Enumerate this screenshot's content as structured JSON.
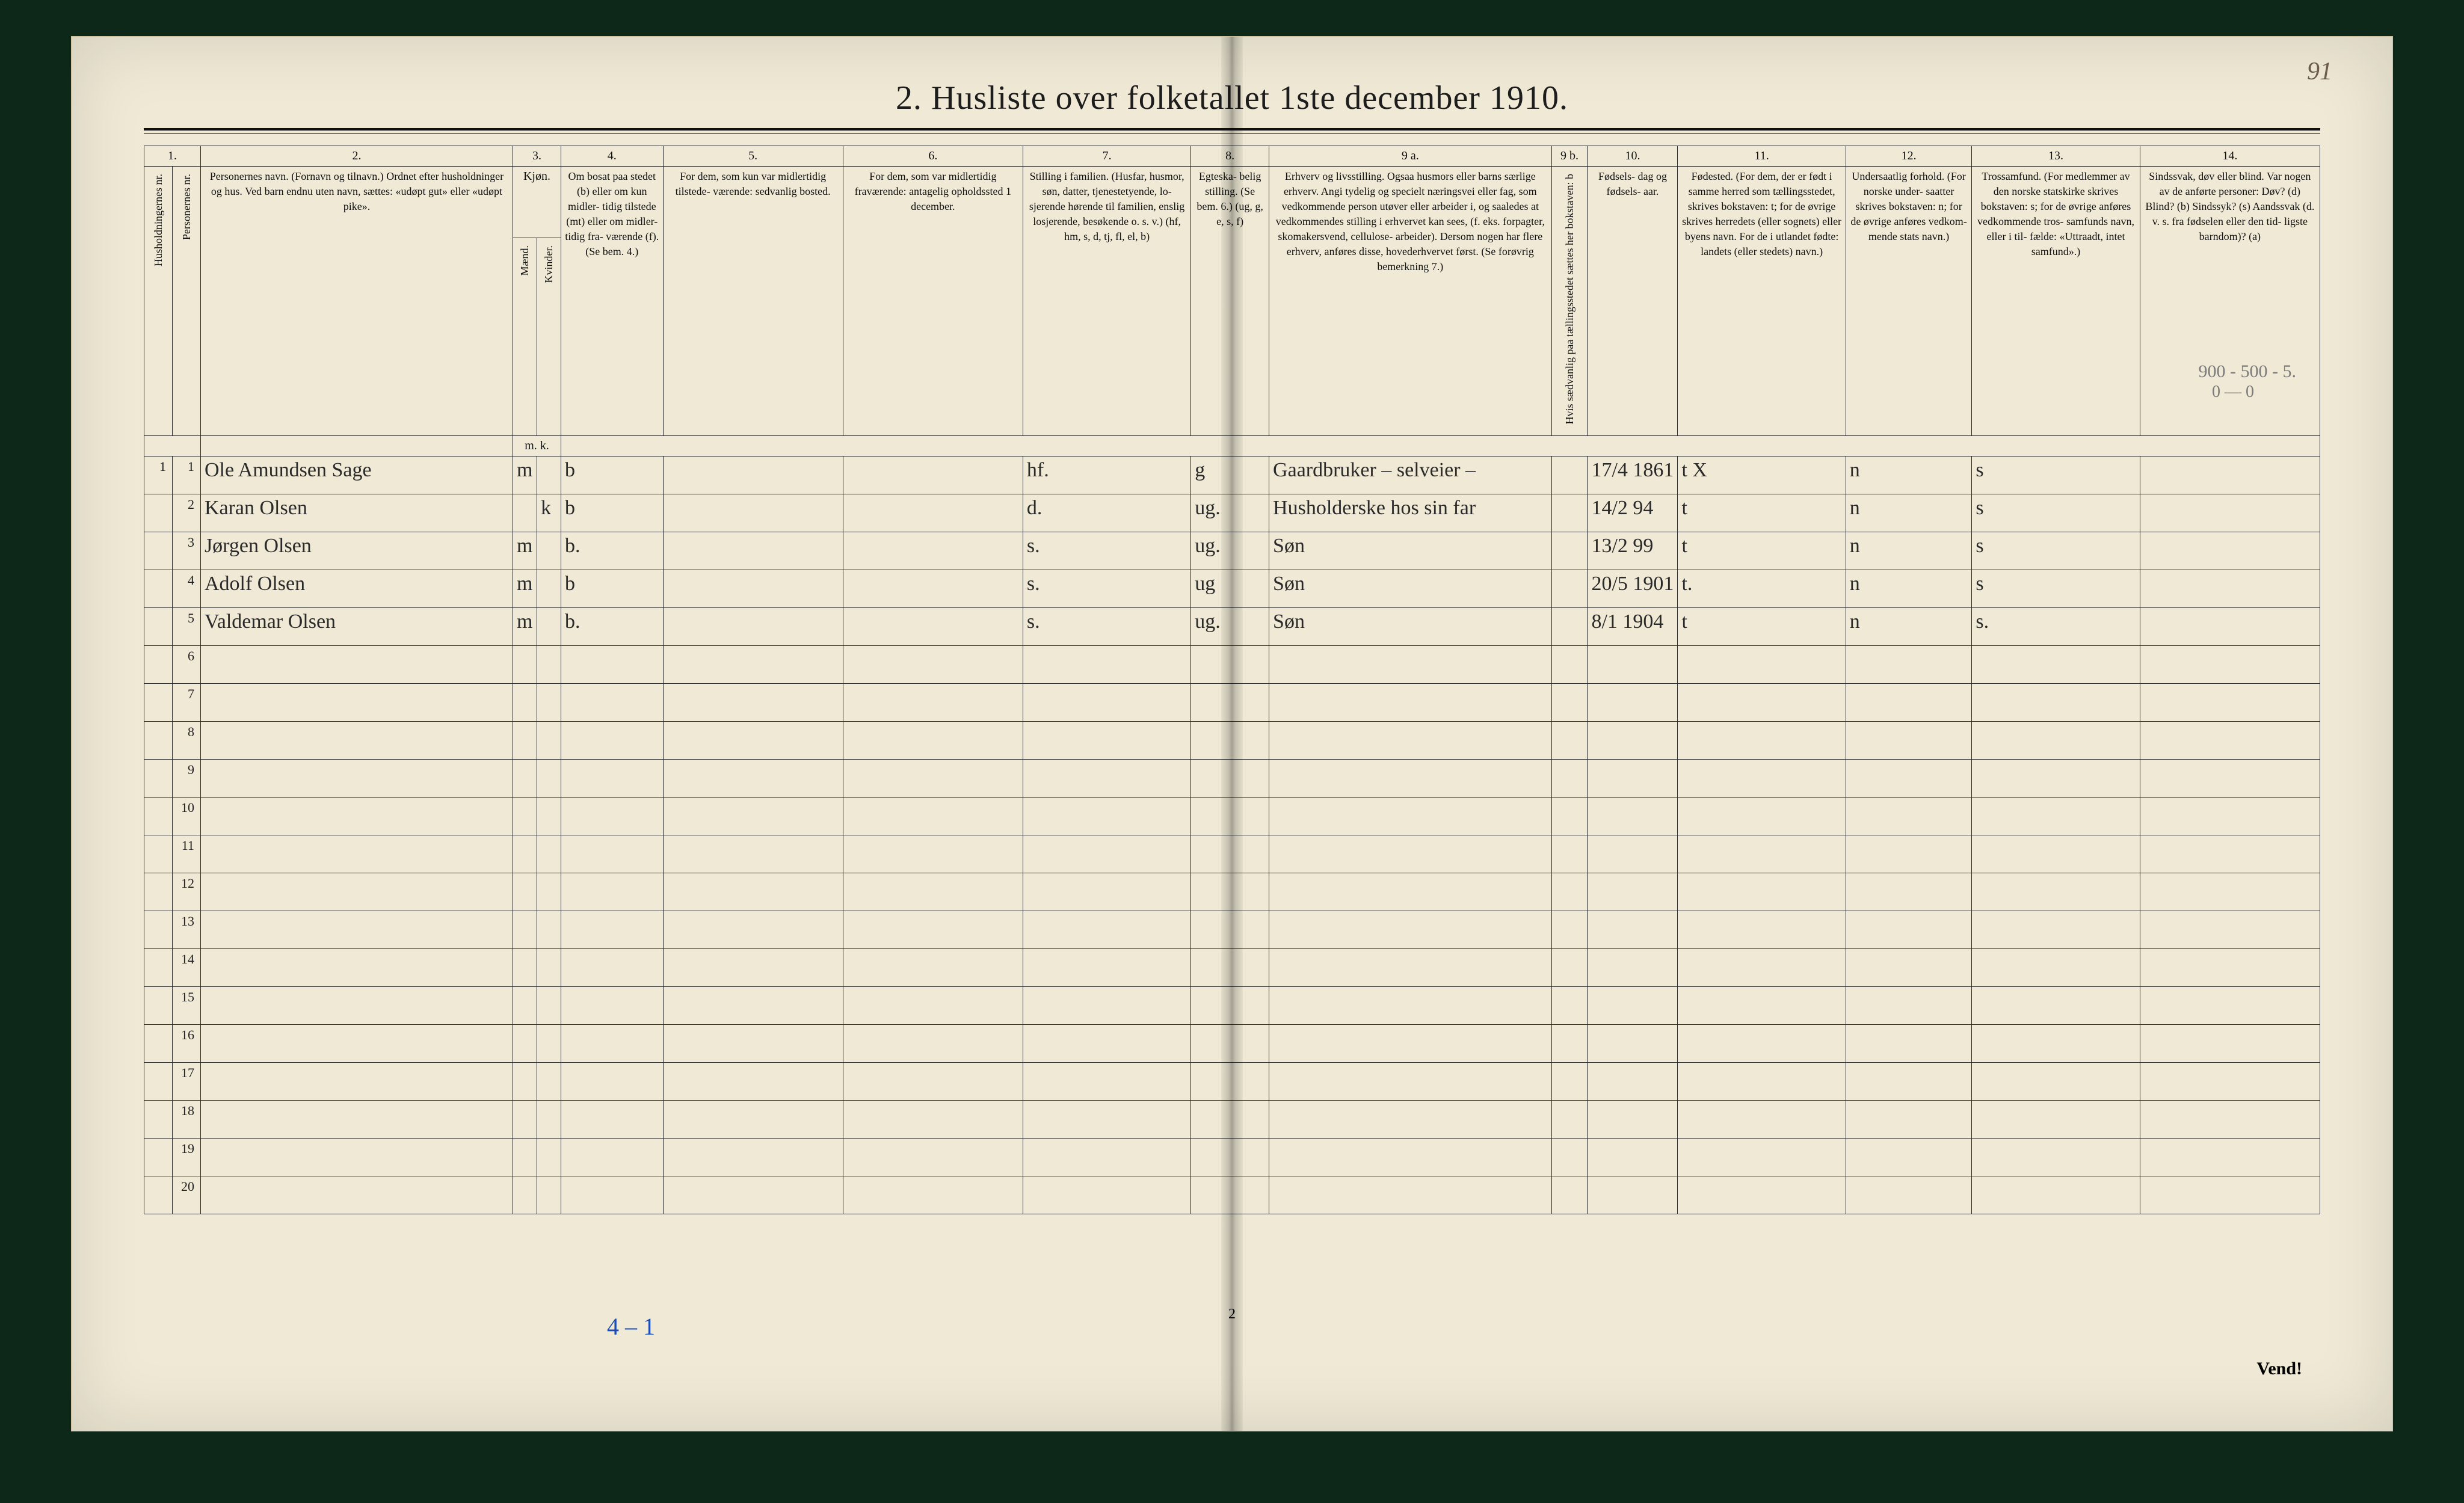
{
  "page_number_handwritten": "91",
  "title": "2.  Husliste over folketallet 1ste december 1910.",
  "pencil_note_top": "900 - 500 - 5.",
  "pencil_note_top2": "0   —   0",
  "column_numbers": [
    "1.",
    "2.",
    "3.",
    "4.",
    "5.",
    "6.",
    "7.",
    "8.",
    "9 a.",
    "9 b.",
    "10.",
    "11.",
    "12.",
    "13.",
    "14."
  ],
  "headers": {
    "c1a": "Husholdningernes nr.",
    "c1b": "Personernes nr.",
    "c2": "Personernes navn.\n(Fornavn og tilnavn.)\nOrdnet efter husholdninger og hus.\nVed barn endnu uten navn, sættes: «udøpt gut» eller «udøpt pike».",
    "c3": "Kjøn.",
    "c3a": "Mænd.",
    "c3b": "Kvinder.",
    "c4": "Om bosat paa stedet (b) eller om kun midler- tidig tilstede (mt) eller om midler- tidig fra- værende (f). (Se bem. 4.)",
    "c5": "For dem, som kun var midlertidig tilstede- værende:\nsedvanlig bosted.",
    "c6": "For dem, som var midlertidig fraværende:\nantagelig opholdssted 1 december.",
    "c7": "Stilling i familien.\n(Husfar, husmor, søn, datter, tjenestetyende, lo- sjerende hørende til familien, enslig losjerende, besøkende o. s. v.)\n(hf, hm, s, d, tj, fl, el, b)",
    "c8": "Egteska- belig stilling.\n(Se bem. 6.)\n(ug, g, e, s, f)",
    "c9a": "Erhverv og livsstilling.\nOgsaa husmors eller barns særlige erhverv. Angi tydelig og specielt næringsvei eller fag, som vedkommende person utøver eller arbeider i, og saaledes at vedkommendes stilling i erhvervet kan sees, (f. eks. forpagter, skomakersvend, cellulose- arbeider). Dersom nogen har flere erhverv, anføres disse, hovederhvervet først.\n(Se forøvrig bemerkning 7.)",
    "c9b": "Hvis sædvanlig paa tællingsstedet sættes her bokstaven: b",
    "c10": "Fødsels- dag og fødsels- aar.",
    "c11": "Fødested.\n(For dem, der er født i samme herred som tællingsstedet, skrives bokstaven: t; for de øvrige skrives herredets (eller sognets) eller byens navn. For de i utlandet fødte: landets (eller stedets) navn.)",
    "c12": "Undersaatlig forhold.\n(For norske under- saatter skrives bokstaven: n; for de øvrige anføres vedkom- mende stats navn.)",
    "c13": "Trossamfund.\n(For medlemmer av den norske statskirke skrives bokstaven: s; for de øvrige anføres vedkommende tros- samfunds navn, eller i til- fælde: «Uttraadt, intet samfund».)",
    "c14": "Sindssvak, døv eller blind.\nVar nogen av de anførte personer:\nDøv?      (d)\nBlind?    (b)\nSindssyk? (s)\nAandssvak (d. v. s. fra fødselen eller den tid- ligste barndom)? (a)"
  },
  "rows": [
    {
      "hh": "1",
      "pn": "1",
      "name": "Ole Amundsen Sage",
      "sex_m": "m",
      "sex_k": "",
      "residence": "b",
      "col5": "",
      "col6": "",
      "family_pos": "hf.",
      "marital": "g",
      "occupation": "Gaardbruker – selveier –",
      "col9b": "",
      "birth": "17/4 1861",
      "birthplace": "t  X",
      "nationality": "n",
      "faith": "s",
      "col14": ""
    },
    {
      "hh": "",
      "pn": "2",
      "name": "Karan Olsen",
      "sex_m": "",
      "sex_k": "k",
      "residence": "b",
      "col5": "",
      "col6": "",
      "family_pos": "d.",
      "marital": "ug.",
      "occupation": "Husholderske hos sin far",
      "col9b": "",
      "birth": "14/2 94",
      "birthplace": "t",
      "nationality": "n",
      "faith": "s",
      "col14": ""
    },
    {
      "hh": "",
      "pn": "3",
      "name": "Jørgen Olsen",
      "sex_m": "m",
      "sex_k": "",
      "residence": "b.",
      "col5": "",
      "col6": "",
      "family_pos": "s.",
      "marital": "ug.",
      "occupation": "Søn",
      "col9b": "",
      "birth": "13/2 99",
      "birthplace": "t",
      "nationality": "n",
      "faith": "s",
      "col14": ""
    },
    {
      "hh": "",
      "pn": "4",
      "name": "Adolf Olsen",
      "sex_m": "m",
      "sex_k": "",
      "residence": "b",
      "col5": "",
      "col6": "",
      "family_pos": "s.",
      "marital": "ug",
      "occupation": "Søn",
      "col9b": "",
      "birth": "20/5 1901",
      "birthplace": "t.",
      "nationality": "n",
      "faith": "s",
      "col14": ""
    },
    {
      "hh": "",
      "pn": "5",
      "name": "Valdemar Olsen",
      "sex_m": "m",
      "sex_k": "",
      "residence": "b.",
      "col5": "",
      "col6": "",
      "family_pos": "s.",
      "marital": "ug.",
      "occupation": "Søn",
      "col9b": "",
      "birth": "8/1 1904",
      "birthplace": "t",
      "nationality": "n",
      "faith": "s.",
      "col14": ""
    }
  ],
  "row_numbers_printed": [
    "1",
    "2",
    "3",
    "4",
    "5",
    "6",
    "7",
    "8",
    "9",
    "10",
    "11",
    "12",
    "13",
    "14",
    "15",
    "16",
    "17",
    "18",
    "19",
    "20"
  ],
  "bottom_tally": "4 – 1",
  "footer_page": "2",
  "vend": "Vend!",
  "mk_label": "m.  k."
}
